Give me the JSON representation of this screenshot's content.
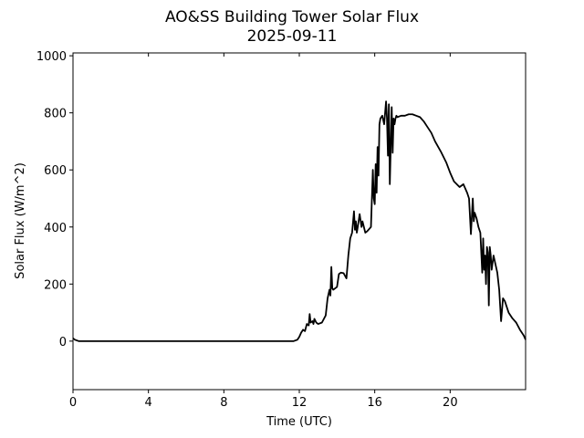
{
  "chart_data": {
    "type": "line",
    "title": "AO&SS Building Tower Solar Flux",
    "subtitle": "2025-09-11",
    "xlabel": "Time (UTC)",
    "ylabel": "Solar Flux (W/m^2)",
    "xlim": [
      0,
      24
    ],
    "ylim": [
      -170,
      1010
    ],
    "x_ticks": [
      0,
      4,
      8,
      12,
      16,
      20
    ],
    "y_ticks": [
      0,
      200,
      400,
      600,
      800,
      1000
    ],
    "x_tick_labels": [
      "0",
      "4",
      "8",
      "12",
      "16",
      "20"
    ],
    "y_tick_labels": [
      "0",
      "200",
      "400",
      "600",
      "800",
      "1000"
    ],
    "grid": false,
    "line_color": "#000000",
    "series": [
      {
        "name": "",
        "x": [
          0,
          0.1,
          0.3,
          0.5,
          2,
          4,
          6,
          8,
          10,
          11,
          11.5,
          11.7,
          11.9,
          12.0,
          12.1,
          12.2,
          12.3,
          12.4,
          12.5,
          12.55,
          12.6,
          12.7,
          12.75,
          12.8,
          12.9,
          13.0,
          13.2,
          13.4,
          13.5,
          13.6,
          13.65,
          13.7,
          13.75,
          13.8,
          14.0,
          14.1,
          14.2,
          14.35,
          14.5,
          14.6,
          14.7,
          14.8,
          14.9,
          14.95,
          15.0,
          15.05,
          15.1,
          15.2,
          15.3,
          15.35,
          15.5,
          15.6,
          15.8,
          15.9,
          15.95,
          16.0,
          16.05,
          16.1,
          16.15,
          16.2,
          16.25,
          16.3,
          16.4,
          16.5,
          16.55,
          16.6,
          16.65,
          16.7,
          16.75,
          16.8,
          16.9,
          16.95,
          17.0,
          17.05,
          17.1,
          17.15,
          17.2,
          17.4,
          17.6,
          17.8,
          18.0,
          18.2,
          18.4,
          18.6,
          18.8,
          19.0,
          19.2,
          19.5,
          19.8,
          20.0,
          20.2,
          20.5,
          20.7,
          20.9,
          21.0,
          21.1,
          21.2,
          21.25,
          21.3,
          21.35,
          21.4,
          21.5,
          21.6,
          21.7,
          21.75,
          21.8,
          21.85,
          21.9,
          21.95,
          22.0,
          22.05,
          22.1,
          22.15,
          22.2,
          22.3,
          22.4,
          22.5,
          22.6,
          22.7,
          22.8,
          22.9,
          23.0,
          23.1,
          23.3,
          23.5,
          23.7,
          23.9,
          24.0
        ],
        "y": [
          10,
          5,
          0,
          0,
          0,
          0,
          0,
          0,
          0,
          0,
          0,
          0,
          5,
          15,
          30,
          40,
          35,
          60,
          55,
          95,
          65,
          70,
          60,
          78,
          65,
          60,
          65,
          90,
          150,
          180,
          160,
          260,
          185,
          180,
          190,
          235,
          240,
          238,
          220,
          300,
          360,
          380,
          455,
          390,
          420,
          380,
          400,
          445,
          400,
          420,
          380,
          385,
          400,
          600,
          500,
          480,
          620,
          520,
          680,
          580,
          760,
          780,
          790,
          760,
          800,
          840,
          780,
          650,
          830,
          550,
          820,
          660,
          780,
          760,
          780,
          790,
          785,
          790,
          790,
          795,
          795,
          790,
          785,
          770,
          750,
          730,
          700,
          665,
          625,
          590,
          560,
          540,
          550,
          520,
          500,
          375,
          500,
          420,
          450,
          440,
          430,
          400,
          380,
          240,
          360,
          250,
          300,
          200,
          330,
          310,
          125,
          330,
          300,
          250,
          300,
          270,
          240,
          180,
          70,
          150,
          140,
          120,
          100,
          80,
          65,
          40,
          20,
          5
        ]
      }
    ]
  }
}
